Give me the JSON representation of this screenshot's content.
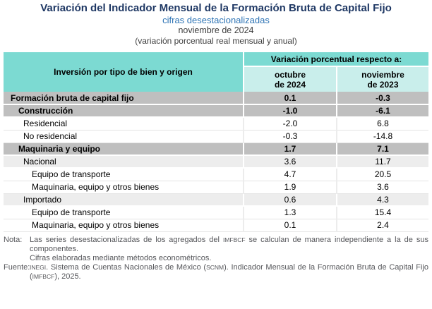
{
  "header": {
    "title": "Variación del Indicador Mensual de la Formación Bruta de Capital Fijo",
    "subtitle": "cifras desestacionalizadas",
    "period": "noviembre de 2024",
    "unit_note": "(variación porcentual real mensual y anual)"
  },
  "table": {
    "corner_header": "Inversión por tipo de bien y origen",
    "span_header": "Variación porcentual respecto a:",
    "columns": [
      {
        "line1": "octubre",
        "line2": "de 2024"
      },
      {
        "line1": "noviembre",
        "line2": "de 2023"
      }
    ],
    "rows": [
      {
        "label": "Formación bruta de capital fijo",
        "values": [
          "0.1",
          "-0.3"
        ]
      },
      {
        "label": "Construcción",
        "values": [
          "-1.0",
          "-6.1"
        ]
      },
      {
        "label": "Residencial",
        "values": [
          "-2.0",
          "6.8"
        ]
      },
      {
        "label": "No residencial",
        "values": [
          "-0.3",
          "-14.8"
        ]
      },
      {
        "label": "Maquinaria y equipo",
        "values": [
          "1.7",
          "7.1"
        ]
      },
      {
        "label": "Nacional",
        "values": [
          "3.6",
          "11.7"
        ]
      },
      {
        "label": "Equipo de transporte",
        "values": [
          "4.7",
          "20.5"
        ]
      },
      {
        "label": "Maquinaria, equipo y otros bienes",
        "values": [
          "1.9",
          "3.6"
        ]
      },
      {
        "label": "Importado",
        "values": [
          "0.6",
          "4.3"
        ]
      },
      {
        "label": "Equipo de transporte",
        "values": [
          "1.3",
          "15.4"
        ]
      },
      {
        "label": "Maquinaria, equipo y otros bienes",
        "values": [
          "0.1",
          "2.4"
        ]
      }
    ]
  },
  "notes": {
    "nota_label": "Nota:",
    "nota_p1": {
      "t1": "Las series desestacionalizadas de los agregados del ",
      "acr": "IMFBCF",
      "t2": " se calculan de manera independiente a la de sus componentes."
    },
    "nota_p2": "Cifras elaboradas mediante métodos econométricos.",
    "fuente_label": "Fuente:",
    "fuente": {
      "acr1": "INEGI",
      "t1": ". Sistema de Cuentas Nacionales de México (",
      "acr2": "SCNM",
      "t2": "). Indicador Mensual de la Formación Bruta de Capital Fijo (",
      "acr3": "IMFBCF",
      "t3": "), 2025."
    }
  },
  "colors": {
    "title_navy": "#1F3864",
    "subtitle_blue": "#2E74B5",
    "header_teal": "#7CDAD2",
    "subheader_teal_light": "#C9EEEB",
    "row_gray": "#BFBFBF",
    "row_light_gray": "#EDEDED",
    "notes_gray": "#55565A"
  }
}
